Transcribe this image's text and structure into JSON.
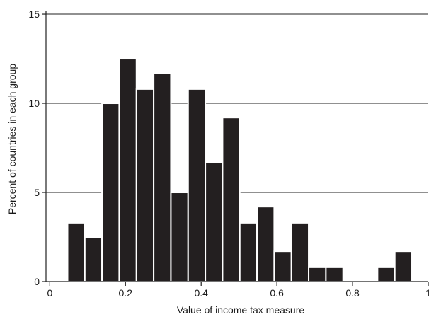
{
  "chart_data": {
    "type": "bar",
    "xlabel": "Value of income tax measure",
    "ylabel": "Percent of countries in each group",
    "xlim": [
      -0.01,
      1.0
    ],
    "ylim": [
      0,
      15.2
    ],
    "xticks": [
      0,
      0.2,
      0.4,
      0.6,
      0.8,
      1
    ],
    "xtick_labels": [
      "0",
      "0.2",
      "0.4",
      "0.6",
      "0.8",
      "1"
    ],
    "yticks": [
      0,
      5,
      10,
      15
    ],
    "ytick_labels": [
      "0",
      "5",
      "10",
      "15"
    ],
    "grid": "horizontal",
    "bin_width": 0.0455,
    "bins": [
      {
        "x0": 0.047,
        "value": 3.3
      },
      {
        "x0": 0.0925,
        "value": 2.5
      },
      {
        "x0": 0.138,
        "value": 10.0
      },
      {
        "x0": 0.1835,
        "value": 12.5
      },
      {
        "x0": 0.229,
        "value": 10.8
      },
      {
        "x0": 0.2745,
        "value": 11.7
      },
      {
        "x0": 0.32,
        "value": 5.0
      },
      {
        "x0": 0.3655,
        "value": 10.8
      },
      {
        "x0": 0.411,
        "value": 6.7
      },
      {
        "x0": 0.4565,
        "value": 9.2
      },
      {
        "x0": 0.502,
        "value": 3.3
      },
      {
        "x0": 0.5475,
        "value": 4.2
      },
      {
        "x0": 0.593,
        "value": 1.7
      },
      {
        "x0": 0.6385,
        "value": 3.3
      },
      {
        "x0": 0.684,
        "value": 0.8
      },
      {
        "x0": 0.7295,
        "value": 0.8
      },
      {
        "x0": 0.866,
        "value": 0.8
      },
      {
        "x0": 0.9115,
        "value": 1.7
      }
    ],
    "colors": {
      "bar": "#231f20",
      "bar_edge": "#ffffff",
      "grid": "#222222",
      "axis": "#222222"
    }
  }
}
